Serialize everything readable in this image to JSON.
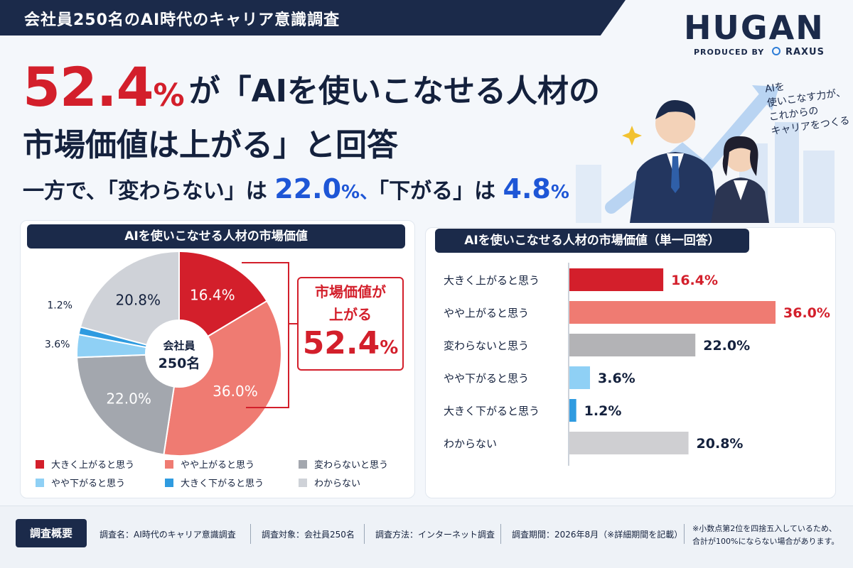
{
  "header": {
    "banner": "会社員250名のAI時代のキャリア意識調査",
    "logo": "HUGAN",
    "produced_by": "PRODUCED BY",
    "producer": "RAXUS"
  },
  "headline": {
    "big_number": "52.4",
    "pct": "%",
    "line1_rest": "が「AIを使いこなせる人材の",
    "line2": "市場価値は上がる」と回答",
    "line3_a": "一方で、「変わらない」は",
    "line3_v1": "22.0",
    "line3_p1": "%、",
    "line3_b": "「下がる」は",
    "line3_v2": "4.8",
    "line3_p2": "%"
  },
  "illustration": {
    "handwriting": [
      "AIを",
      "使いこなす力が、",
      "これからの",
      "キャリアをつくる"
    ]
  },
  "pie_panel": {
    "title": "AIを使いこなせる人材の市場価値",
    "center_line1": "会社員",
    "center_line2": "250名",
    "callout_line1": "市場価値が",
    "callout_line2": "上がる",
    "callout_value": "52.4",
    "callout_pct": "%"
  },
  "bar_panel": {
    "title": "AIを使いこなせる人材の市場価値（単一回答）"
  },
  "colors": {
    "navy": "#1b2a4a",
    "red": "#d31f2b",
    "blue_accent": "#1e56d6"
  },
  "chart_data": [
    {
      "type": "pie",
      "title": "AIを使いこなせる人材の市場価値",
      "categories": [
        "大きく上がると思う",
        "やや上がると思う",
        "変わらないと思う",
        "やや下がると思う",
        "大きく下がると思う",
        "わからない"
      ],
      "values": [
        16.4,
        36.0,
        22.0,
        3.6,
        1.2,
        20.8
      ],
      "labels": [
        "16.4%",
        "36.0%",
        "22.0%",
        "3.6%",
        "1.2%",
        "20.8%"
      ],
      "colors": [
        "#d31f2b",
        "#ef7b72",
        "#a3a7ae",
        "#8fd0f5",
        "#2f9be0",
        "#cfd2d8"
      ],
      "legend": "bottom"
    },
    {
      "type": "bar",
      "orientation": "horizontal",
      "title": "AIを使いこなせる人材の市場価値（単一回答）",
      "categories": [
        "大きく上がると思う",
        "やや上がると思う",
        "変わらないと思う",
        "やや下がると思う",
        "大きく下がると思う",
        "わからない"
      ],
      "values": [
        16.4,
        36.0,
        22.0,
        3.6,
        1.2,
        20.8
      ],
      "labels": [
        "16.4%",
        "36.0%",
        "22.0%",
        "3.6%",
        "1.2%",
        "20.8%"
      ],
      "colors": [
        "#d31f2b",
        "#ef7b72",
        "#b3b3b6",
        "#8fd0f5",
        "#2f9be0",
        "#cfcfd2"
      ],
      "label_colors": [
        "#d31f2b",
        "#d31f2b",
        "#14213d",
        "#14213d",
        "#14213d",
        "#14213d"
      ],
      "xlim": [
        0,
        36.0
      ],
      "grid": false
    }
  ],
  "footer": {
    "label": "調査概要",
    "items": [
      "調査名：AI時代のキャリア意識調査",
      "調査対象：会社員250名",
      "調査方法：インターネット調査",
      "調査期間：2026年8月（※詳細期間を記載）"
    ],
    "note_line1": "※小数点第2位を四捨五入しているため、",
    "note_line2": "合計が100%にならない場合があります。"
  }
}
